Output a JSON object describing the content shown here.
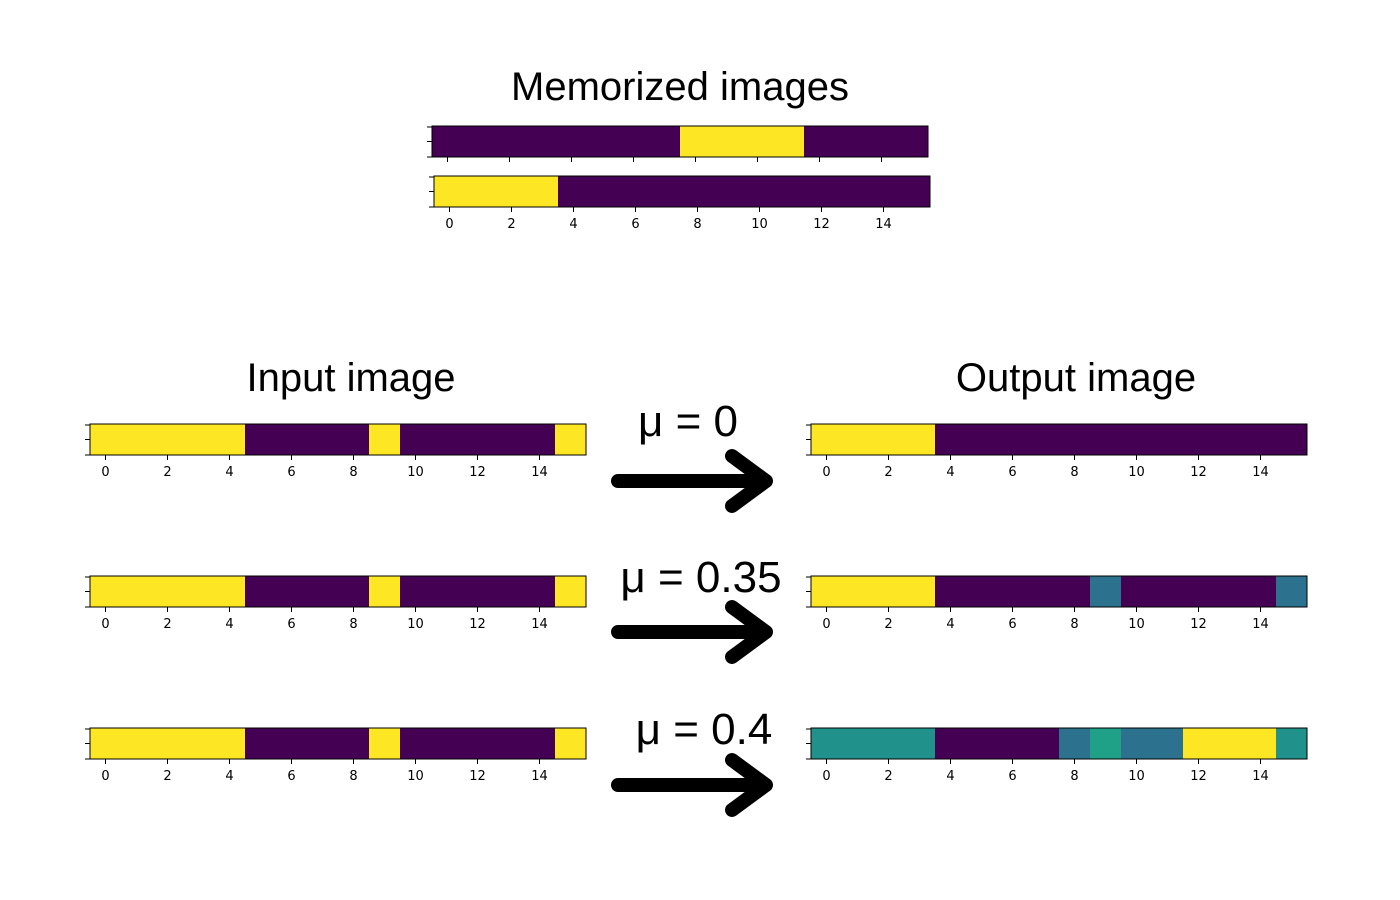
{
  "title_memorized": "Memorized images",
  "title_input": "Input image",
  "title_output": "Output image",
  "colormap": {
    "0": "#440154",
    "0.33": "#2c728e",
    "0.5": "#21918c",
    "0.6": "#1fa187",
    "1": "#fde725"
  },
  "chart_data": [
    {
      "type": "heatmap",
      "name": "memorized-1",
      "x": [
        0,
        1,
        2,
        3,
        4,
        5,
        6,
        7,
        8,
        9,
        10,
        11,
        12,
        13,
        14,
        15
      ],
      "values": [
        0,
        0,
        0,
        0,
        0,
        0,
        0,
        0,
        1,
        1,
        1,
        1,
        0,
        0,
        0,
        0
      ],
      "show_xticks": false
    },
    {
      "type": "heatmap",
      "name": "memorized-2",
      "x": [
        0,
        1,
        2,
        3,
        4,
        5,
        6,
        7,
        8,
        9,
        10,
        11,
        12,
        13,
        14,
        15
      ],
      "values": [
        1,
        1,
        1,
        1,
        0,
        0,
        0,
        0,
        0,
        0,
        0,
        0,
        0,
        0,
        0,
        0
      ],
      "show_xticks": true,
      "xticks": [
        0,
        2,
        4,
        6,
        8,
        10,
        12,
        14
      ]
    },
    {
      "type": "heatmap",
      "name": "input-1",
      "values": [
        1,
        1,
        1,
        1,
        1,
        0,
        0,
        0,
        0,
        1,
        0,
        0,
        0,
        0,
        0,
        1
      ],
      "xticks": [
        0,
        2,
        4,
        6,
        8,
        10,
        12,
        14
      ]
    },
    {
      "type": "heatmap",
      "name": "output-1",
      "mu": "μ = 0",
      "values": [
        1,
        1,
        1,
        1,
        0,
        0,
        0,
        0,
        0,
        0,
        0,
        0,
        0,
        0,
        0,
        0
      ],
      "xticks": [
        0,
        2,
        4,
        6,
        8,
        10,
        12,
        14
      ]
    },
    {
      "type": "heatmap",
      "name": "input-2",
      "values": [
        1,
        1,
        1,
        1,
        1,
        0,
        0,
        0,
        0,
        1,
        0,
        0,
        0,
        0,
        0,
        1
      ],
      "xticks": [
        0,
        2,
        4,
        6,
        8,
        10,
        12,
        14
      ]
    },
    {
      "type": "heatmap",
      "name": "output-2",
      "mu": "μ = 0.35",
      "values": [
        1,
        1,
        1,
        1,
        0,
        0,
        0,
        0,
        0,
        0.33,
        0,
        0,
        0,
        0,
        0,
        0.33
      ],
      "xticks": [
        0,
        2,
        4,
        6,
        8,
        10,
        12,
        14
      ]
    },
    {
      "type": "heatmap",
      "name": "input-3",
      "values": [
        1,
        1,
        1,
        1,
        1,
        0,
        0,
        0,
        0,
        1,
        0,
        0,
        0,
        0,
        0,
        1
      ],
      "xticks": [
        0,
        2,
        4,
        6,
        8,
        10,
        12,
        14
      ]
    },
    {
      "type": "heatmap",
      "name": "output-3",
      "mu": "μ = 0.4",
      "values": [
        0.5,
        0.5,
        0.5,
        0.5,
        0,
        0,
        0,
        0,
        0.33,
        0.6,
        0.33,
        0.33,
        1,
        1,
        1,
        0.5
      ],
      "xticks": [
        0,
        2,
        4,
        6,
        8,
        10,
        12,
        14
      ]
    }
  ]
}
